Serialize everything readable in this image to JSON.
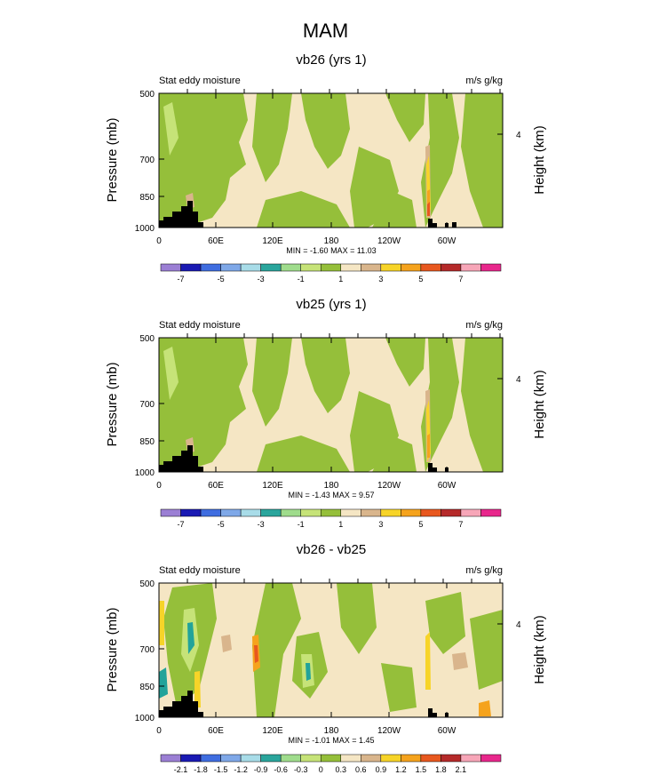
{
  "title": "MAM",
  "colors": {
    "tan": "#f5e6c4",
    "green": "#95bf3a",
    "light_green": "#c6e378",
    "brown": "#d9b58c",
    "orange": "#f5a31d",
    "yellow": "#f7d428",
    "red_orange": "#e8581f",
    "teal": "#22a39a",
    "cyan": "#9fd9e3",
    "black": "#000000"
  },
  "chart_data": [
    {
      "type": "heatmap",
      "title": "vb26 (yrs 1)",
      "left_label": "Stat eddy moisture",
      "right_label": "m/s g/kg",
      "ylabel": "Pressure (mb)",
      "ylabel_right": "Height (km)",
      "yticks": [
        "500",
        "700",
        "850",
        "1000"
      ],
      "yticks_right": [
        "4"
      ],
      "xticks": [
        "0",
        "60E",
        "120E",
        "180",
        "120W",
        "60W"
      ],
      "stats": "MIN = -1.60   MAX = 11.03",
      "colorbar": {
        "labels": [
          "-7",
          "-5",
          "-3",
          "-1",
          "1",
          "3",
          "5",
          "7"
        ],
        "colors": [
          "#9b7fd4",
          "#1a1ab3",
          "#3f6de0",
          "#7fa8e8",
          "#a8dce8",
          "#2aa59c",
          "#9fdc8c",
          "#c6e378",
          "#95bf3a",
          "#f5e6c4",
          "#d9b58c",
          "#f7d428",
          "#f5a31d",
          "#e8581f",
          "#b52a2a",
          "#f7a6b8",
          "#e8278c"
        ]
      }
    },
    {
      "type": "heatmap",
      "title": "vb25 (yrs 1)",
      "left_label": "Stat eddy moisture",
      "right_label": "m/s g/kg",
      "ylabel": "Pressure (mb)",
      "ylabel_right": "Height (km)",
      "yticks": [
        "500",
        "700",
        "850",
        "1000"
      ],
      "yticks_right": [
        "4"
      ],
      "xticks": [
        "0",
        "60E",
        "120E",
        "180",
        "120W",
        "60W"
      ],
      "stats": "MIN = -1.43   MAX =  9.57",
      "colorbar": {
        "labels": [
          "-7",
          "-5",
          "-3",
          "-1",
          "1",
          "3",
          "5",
          "7"
        ],
        "colors": [
          "#9b7fd4",
          "#1a1ab3",
          "#3f6de0",
          "#7fa8e8",
          "#a8dce8",
          "#2aa59c",
          "#9fdc8c",
          "#c6e378",
          "#95bf3a",
          "#f5e6c4",
          "#d9b58c",
          "#f7d428",
          "#f5a31d",
          "#e8581f",
          "#b52a2a",
          "#f7a6b8",
          "#e8278c"
        ]
      }
    },
    {
      "type": "heatmap",
      "title": "vb26 - vb25",
      "left_label": "Stat eddy moisture",
      "right_label": "m/s g/kg",
      "ylabel": "Pressure (mb)",
      "ylabel_right": "Height (km)",
      "yticks": [
        "500",
        "700",
        "850",
        "1000"
      ],
      "yticks_right": [
        "4"
      ],
      "xticks": [
        "0",
        "60E",
        "120E",
        "180",
        "120W",
        "60W"
      ],
      "stats": "MIN = -1.01   MAX =  1.45",
      "colorbar": {
        "labels": [
          "-2.1",
          "-1.8",
          "-1.5",
          "-1.2",
          "-0.9",
          "-0.6",
          "-0.3",
          "0",
          "0.3",
          "0.6",
          "0.9",
          "1.2",
          "1.5",
          "1.8",
          "2.1"
        ],
        "colors": [
          "#9b7fd4",
          "#1a1ab3",
          "#3f6de0",
          "#7fa8e8",
          "#a8dce8",
          "#2aa59c",
          "#9fdc8c",
          "#c6e378",
          "#95bf3a",
          "#f5e6c4",
          "#d9b58c",
          "#f7d428",
          "#f5a31d",
          "#e8581f",
          "#b52a2a",
          "#f7a6b8",
          "#e8278c"
        ]
      }
    }
  ]
}
